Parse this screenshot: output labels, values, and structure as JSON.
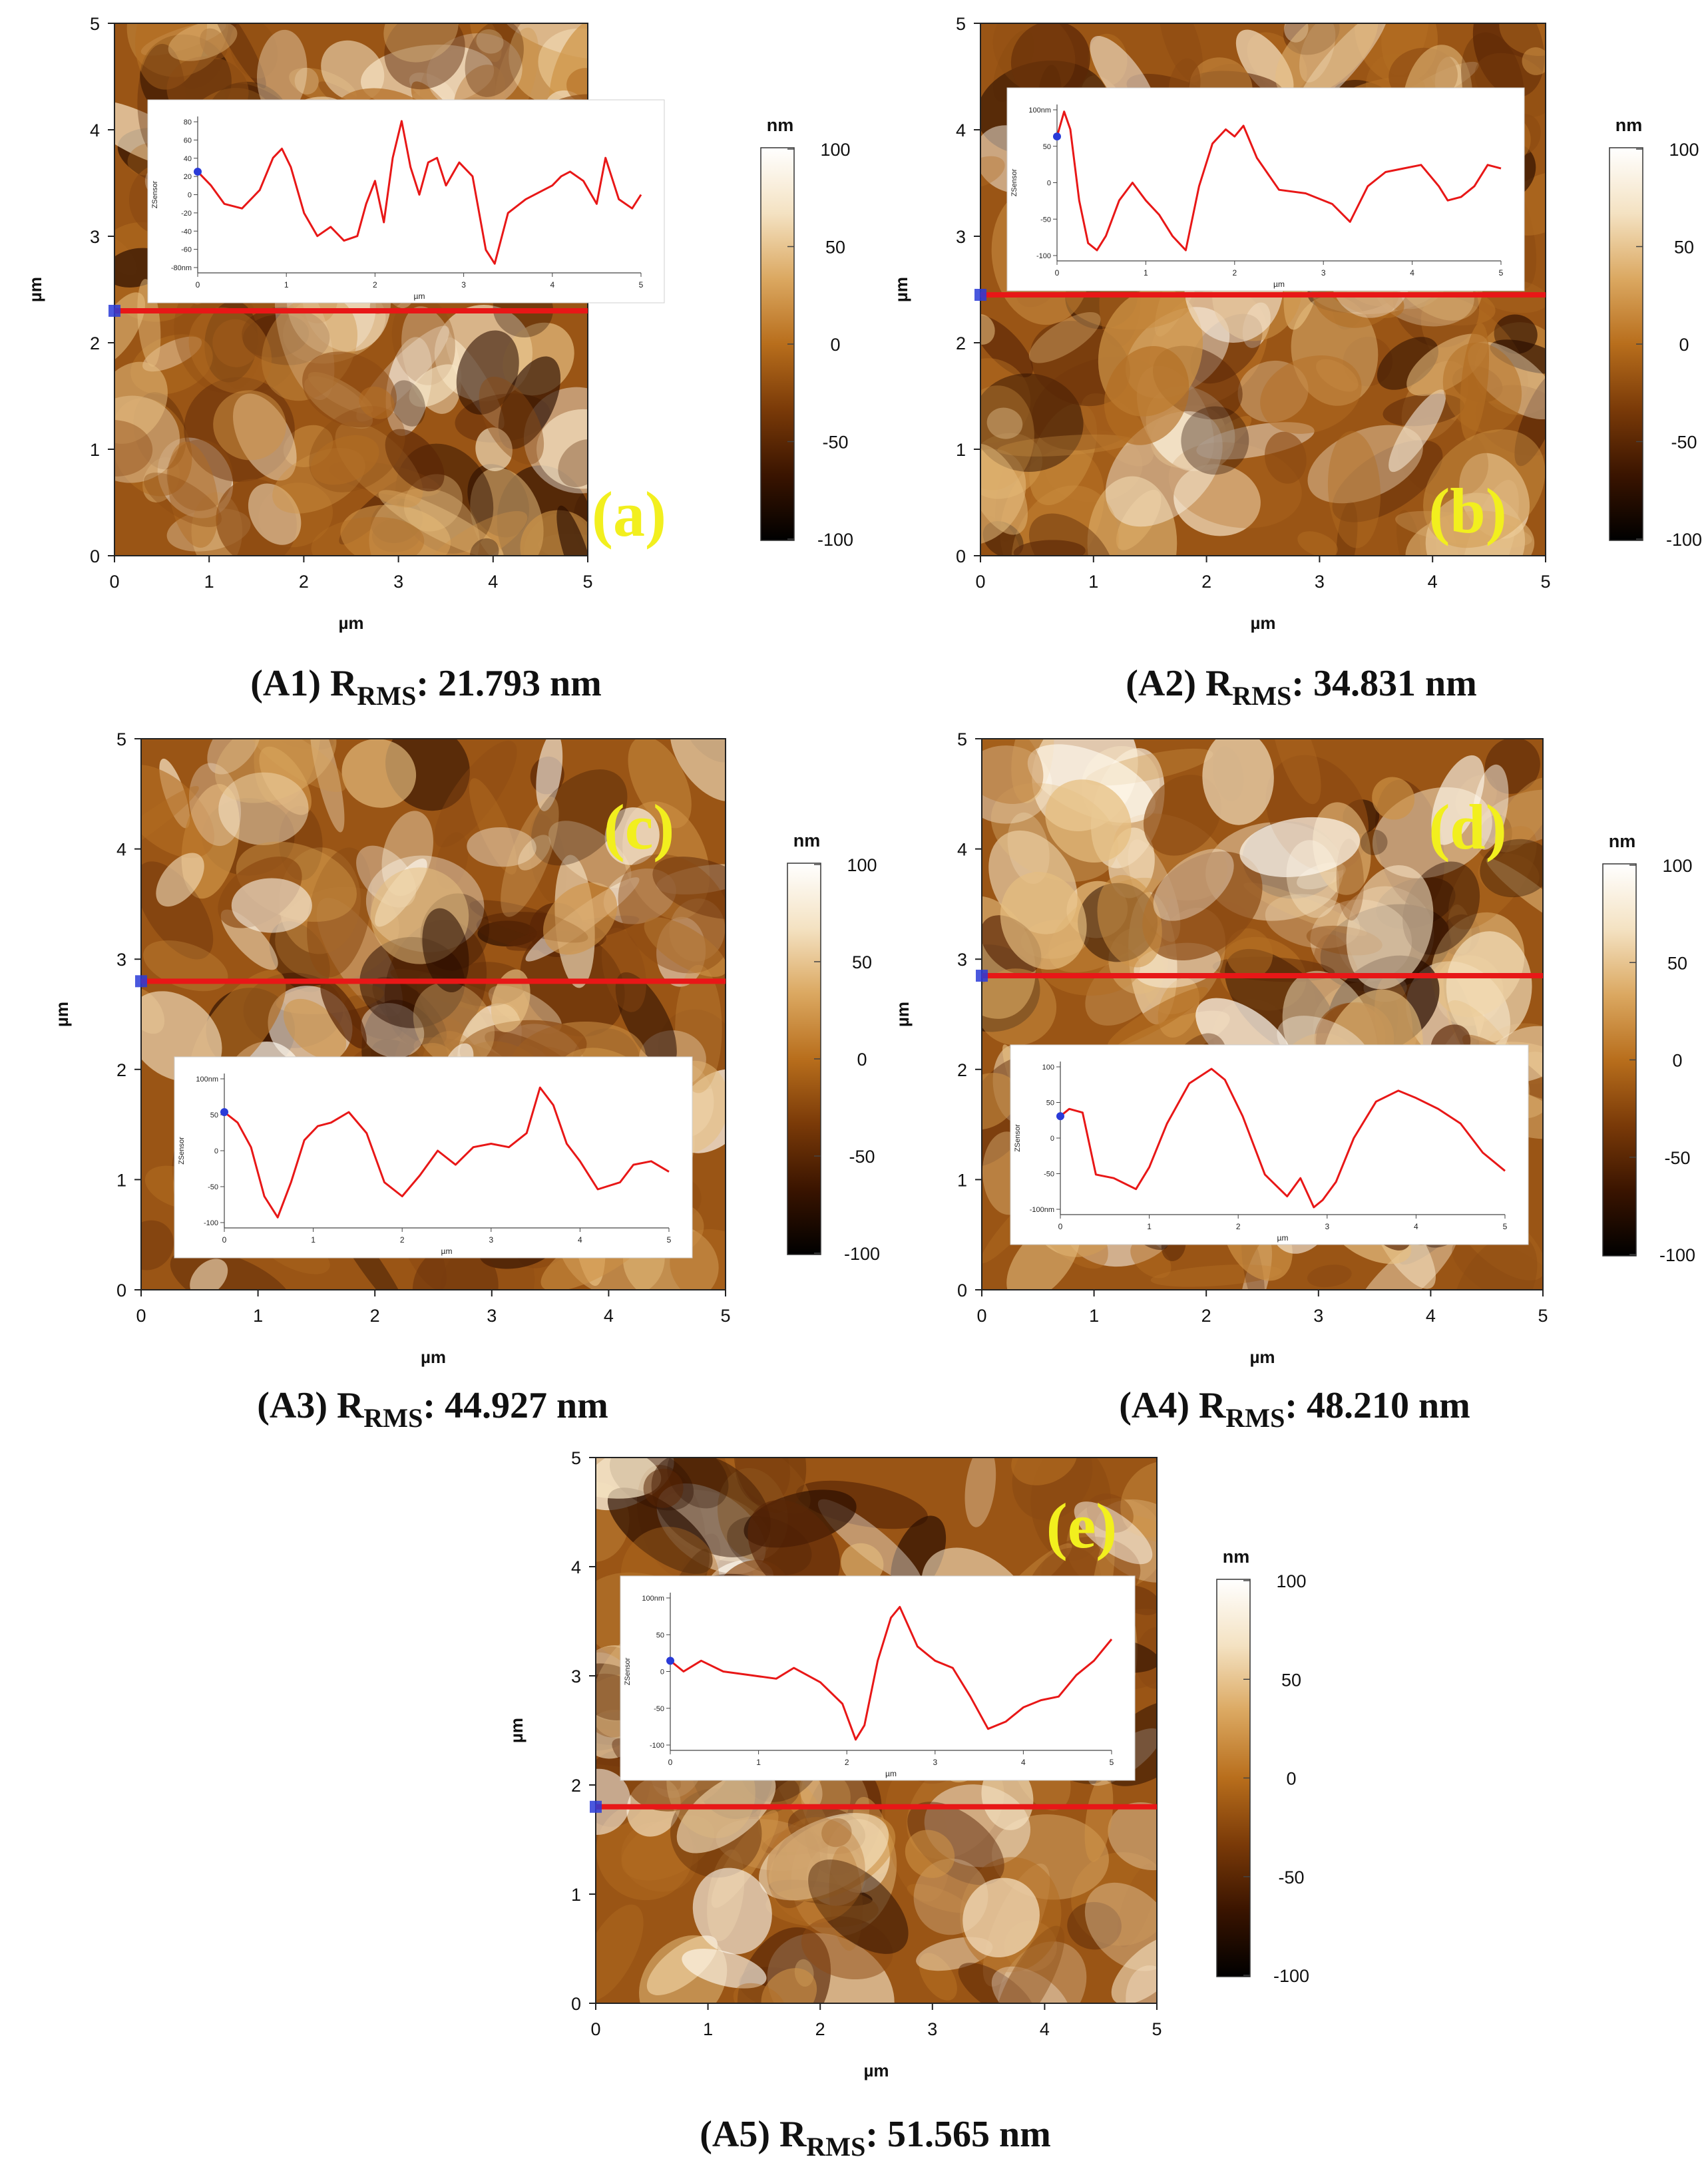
{
  "colors": {
    "scan_line": "#e81717",
    "profile_line": "#e81717",
    "panel_tag": "#f2ef1e",
    "marker": "#2a3bd8",
    "afm_colormap": [
      "#000000",
      "#3a1400",
      "#7a3a08",
      "#b86e1c",
      "#dba861",
      "#f4e2c2",
      "#ffffff"
    ]
  },
  "chart_data": [
    {
      "type": "line",
      "panel_tag": "(a)",
      "caption": {
        "prefix": "(A1) R",
        "sub": "RMS",
        "suffix": ": 21.793 nm"
      },
      "xlabel": "µm",
      "ylabel": "µm",
      "xlim": [
        0,
        5
      ],
      "ylim": [
        0,
        5
      ],
      "xticks": [
        "0",
        "1",
        "2",
        "3",
        "4",
        "5"
      ],
      "yticks": [
        "0",
        "1",
        "2",
        "3",
        "4",
        "5"
      ],
      "scan_line_y": 2.3,
      "colorbar": {
        "unit": "nm",
        "ticks": [
          "100",
          "50",
          "0",
          "-50",
          "-100"
        ]
      },
      "inset": {
        "xlabel": "µm",
        "ylabel": "ZSensor",
        "xticks": [
          "0",
          "1",
          "2",
          "3",
          "4",
          "5"
        ],
        "yticks": [
          "80",
          "60",
          "40",
          "20",
          "0",
          "-20",
          "-40",
          "-60",
          "-80nm"
        ],
        "ylim": [
          -85,
          85
        ],
        "profile": {
          "x": [
            0,
            0.15,
            0.3,
            0.5,
            0.7,
            0.85,
            0.95,
            1.05,
            1.2,
            1.35,
            1.5,
            1.65,
            1.8,
            1.9,
            2.0,
            2.1,
            2.2,
            2.3,
            2.4,
            2.5,
            2.6,
            2.7,
            2.8,
            2.95,
            3.1,
            3.25,
            3.35,
            3.5,
            3.7,
            3.9,
            4.0,
            4.1,
            4.2,
            4.35,
            4.5,
            4.6,
            4.75,
            4.9,
            5.0
          ],
          "y": [
            25,
            10,
            -10,
            -15,
            5,
            40,
            50,
            30,
            -20,
            -45,
            -35,
            -50,
            -45,
            -10,
            15,
            -30,
            40,
            80,
            30,
            0,
            35,
            40,
            10,
            35,
            20,
            -60,
            -75,
            -20,
            -5,
            5,
            10,
            20,
            25,
            15,
            -10,
            40,
            -5,
            -15,
            0
          ]
        }
      }
    },
    {
      "type": "line",
      "panel_tag": "(b)",
      "caption": {
        "prefix": "(A2) R",
        "sub": "RMS",
        "suffix": ": 34.831 nm"
      },
      "xlabel": "µm",
      "ylabel": "µm",
      "xlim": [
        0,
        5
      ],
      "ylim": [
        0,
        5
      ],
      "xticks": [
        "0",
        "1",
        "2",
        "3",
        "4",
        "5"
      ],
      "yticks": [
        "0",
        "1",
        "2",
        "3",
        "4",
        "5"
      ],
      "scan_line_y": 2.45,
      "colorbar": {
        "unit": "nm",
        "ticks": [
          "100",
          "50",
          "0",
          "-50",
          "-100"
        ]
      },
      "inset": {
        "xlabel": "µm",
        "ylabel": "ZSensor",
        "xticks": [
          "0",
          "1",
          "2",
          "3",
          "4",
          "5"
        ],
        "yticks": [
          "100nm",
          "50",
          "0",
          "-50",
          "-100"
        ],
        "ylim": [
          -105,
          115
        ],
        "profile": {
          "x": [
            0,
            0.08,
            0.15,
            0.25,
            0.35,
            0.45,
            0.55,
            0.7,
            0.85,
            1.0,
            1.15,
            1.3,
            1.45,
            1.6,
            1.75,
            1.9,
            2.0,
            2.1,
            2.25,
            2.5,
            2.8,
            3.1,
            3.3,
            3.5,
            3.7,
            3.9,
            4.1,
            4.2,
            4.3,
            4.4,
            4.55,
            4.7,
            4.85,
            5.0
          ],
          "y": [
            70,
            105,
            80,
            -20,
            -80,
            -90,
            -70,
            -20,
            5,
            -20,
            -40,
            -70,
            -90,
            0,
            60,
            80,
            70,
            85,
            40,
            -5,
            -10,
            -25,
            -50,
            0,
            20,
            25,
            30,
            15,
            0,
            -20,
            -15,
            0,
            30,
            25
          ]
        }
      }
    },
    {
      "type": "line",
      "panel_tag": "(c)",
      "caption": {
        "prefix": "(A3) R",
        "sub": "RMS",
        "suffix": ": 44.927 nm"
      },
      "xlabel": "µm",
      "ylabel": "µm",
      "xlim": [
        0,
        5
      ],
      "ylim": [
        0,
        5
      ],
      "xticks": [
        "0",
        "1",
        "2",
        "3",
        "4",
        "5"
      ],
      "yticks": [
        "0",
        "1",
        "2",
        "3",
        "4",
        "5"
      ],
      "scan_line_y": 2.8,
      "colorbar": {
        "unit": "nm",
        "ticks": [
          "100",
          "50",
          "0",
          "-50",
          "-100"
        ]
      },
      "inset": {
        "xlabel": "µm",
        "ylabel": "ZSensor",
        "xticks": [
          "0",
          "1",
          "2",
          "3",
          "4",
          "5"
        ],
        "yticks": [
          "100nm",
          "50",
          "0",
          "-50",
          "-100"
        ],
        "ylim": [
          -105,
          115
        ],
        "profile": {
          "x": [
            0,
            0.15,
            0.3,
            0.45,
            0.6,
            0.75,
            0.9,
            1.05,
            1.2,
            1.4,
            1.6,
            1.8,
            2.0,
            2.2,
            2.4,
            2.6,
            2.8,
            3.0,
            3.2,
            3.4,
            3.55,
            3.7,
            3.85,
            4.0,
            4.2,
            4.45,
            4.6,
            4.8,
            5.0
          ],
          "y": [
            60,
            45,
            10,
            -60,
            -90,
            -40,
            20,
            40,
            45,
            60,
            30,
            -40,
            -60,
            -30,
            5,
            -15,
            10,
            15,
            10,
            30,
            95,
            70,
            15,
            -10,
            -50,
            -40,
            -15,
            -10,
            -25
          ]
        }
      }
    },
    {
      "type": "line",
      "panel_tag": "(d)",
      "caption": {
        "prefix": "(A4) R",
        "sub": "RMS",
        "suffix": ": 48.210 nm"
      },
      "xlabel": "µm",
      "ylabel": "µm",
      "xlim": [
        0,
        5
      ],
      "ylim": [
        0,
        5
      ],
      "xticks": [
        "0",
        "1",
        "2",
        "3",
        "4",
        "5"
      ],
      "yticks": [
        "0",
        "1",
        "2",
        "3",
        "4",
        "5"
      ],
      "scan_line_y": 2.85,
      "colorbar": {
        "unit": "nm",
        "ticks": [
          "100",
          "50",
          "0",
          "-50",
          "-100"
        ]
      },
      "inset": {
        "xlabel": "µm",
        "ylabel": "ZSensor",
        "xticks": [
          "0",
          "1",
          "2",
          "3",
          "4",
          "5"
        ],
        "yticks": [
          "100",
          "50",
          "0",
          "-50",
          "-100nm"
        ],
        "ylim": [
          -105,
          105
        ],
        "profile": {
          "x": [
            0,
            0.1,
            0.25,
            0.4,
            0.6,
            0.85,
            1.0,
            1.2,
            1.45,
            1.7,
            1.85,
            2.05,
            2.3,
            2.55,
            2.7,
            2.85,
            2.95,
            3.1,
            3.3,
            3.55,
            3.8,
            4.0,
            4.25,
            4.5,
            4.75,
            5.0
          ],
          "y": [
            30,
            40,
            35,
            -50,
            -55,
            -70,
            -40,
            20,
            75,
            95,
            80,
            30,
            -50,
            -80,
            -55,
            -95,
            -85,
            -60,
            0,
            50,
            65,
            55,
            40,
            20,
            -20,
            -45
          ]
        }
      }
    },
    {
      "type": "line",
      "panel_tag": "(e)",
      "caption": {
        "prefix": "(A5) R",
        "sub": "RMS",
        "suffix": ": 51.565 nm"
      },
      "xlabel": "µm",
      "ylabel": "µm",
      "xlim": [
        0,
        5
      ],
      "ylim": [
        0,
        5
      ],
      "xticks": [
        "0",
        "1",
        "2",
        "3",
        "4",
        "5"
      ],
      "yticks": [
        "0",
        "1",
        "2",
        "3",
        "4",
        "5"
      ],
      "scan_line_y": 1.8,
      "colorbar": {
        "unit": "nm",
        "ticks": [
          "100",
          "50",
          "0",
          "-50",
          "-100"
        ]
      },
      "inset": {
        "xlabel": "µm",
        "ylabel": "ZSensor",
        "xticks": [
          "0",
          "1",
          "2",
          "3",
          "4",
          "5"
        ],
        "yticks": [
          "100nm",
          "50",
          "0",
          "-50",
          "-100"
        ],
        "ylim": [
          -105,
          115
        ],
        "profile": {
          "x": [
            0,
            0.15,
            0.35,
            0.6,
            0.9,
            1.2,
            1.4,
            1.7,
            1.95,
            2.1,
            2.2,
            2.35,
            2.5,
            2.6,
            2.8,
            3.0,
            3.2,
            3.4,
            3.6,
            3.8,
            4.0,
            4.2,
            4.4,
            4.6,
            4.8,
            5.0
          ],
          "y": [
            20,
            5,
            20,
            5,
            0,
            -5,
            10,
            -10,
            -40,
            -90,
            -70,
            20,
            80,
            95,
            40,
            20,
            10,
            -30,
            -75,
            -65,
            -45,
            -35,
            -30,
            0,
            20,
            50
          ]
        }
      }
    }
  ]
}
